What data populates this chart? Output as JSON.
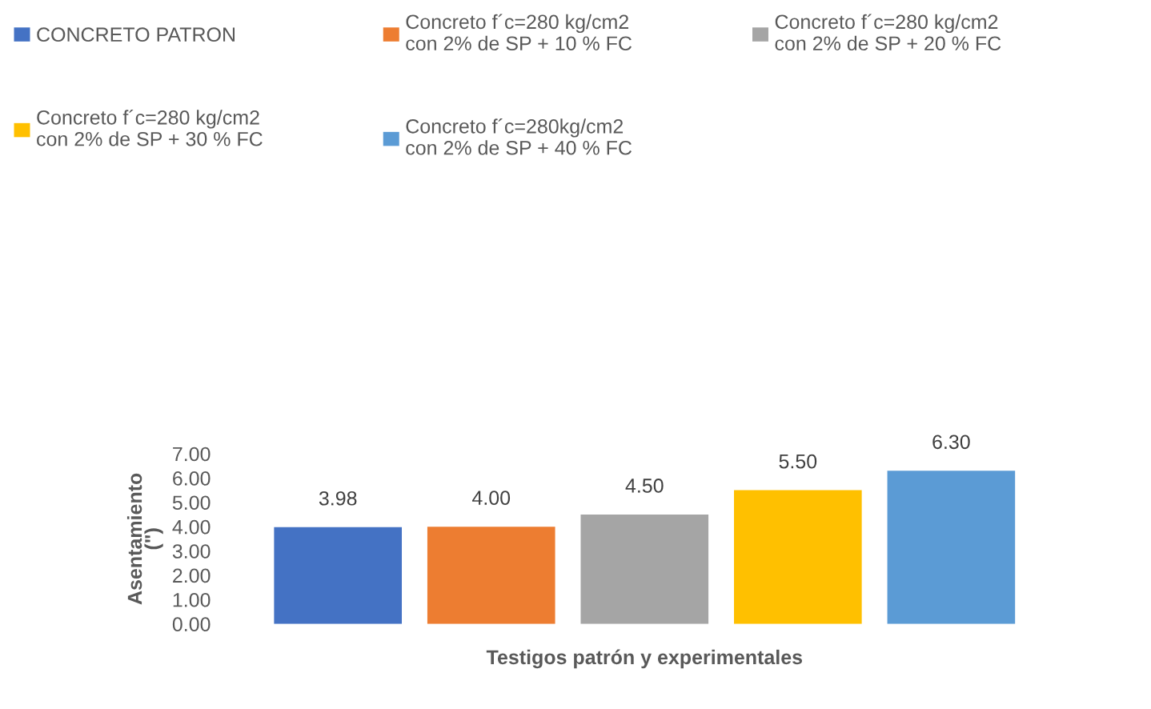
{
  "chart_data": {
    "type": "bar",
    "xlabel": "Testigos patrón y experimentales",
    "ylabel": "Asentamiento\n(\")",
    "categories": [
      null
    ],
    "series": [
      {
        "name": "CONCRETO PATRON",
        "color": "#4472c4",
        "values": [
          3.98
        ],
        "value_labels": [
          "3.98"
        ]
      },
      {
        "name": "Concreto f´c=280 kg/cm2\ncon 2% de SP + 10 % FC",
        "color": "#ed7d31",
        "values": [
          4.0
        ],
        "value_labels": [
          "4.00"
        ]
      },
      {
        "name": "Concreto f´c=280 kg/cm2\ncon 2% de SP + 20 % FC",
        "color": "#a5a5a5",
        "values": [
          4.5
        ],
        "value_labels": [
          "4.50"
        ]
      },
      {
        "name": "Concreto f´c=280 kg/cm2\ncon 2% de SP + 30 % FC",
        "color": "#ffc000",
        "values": [
          5.5
        ],
        "value_labels": [
          "5.50"
        ]
      },
      {
        "name": "Concreto f´c=280kg/cm2\ncon 2% de SP + 40 % FC",
        "color": "#5b9bd5",
        "values": [
          6.3
        ],
        "value_labels": [
          "6.30"
        ]
      }
    ],
    "ylim": [
      0,
      7
    ],
    "yticks": [
      {
        "value": 0,
        "label": "0.00"
      },
      {
        "value": 1,
        "label": "1.00"
      },
      {
        "value": 2,
        "label": "2.00"
      },
      {
        "value": 3,
        "label": "3.00"
      },
      {
        "value": 4,
        "label": "4.00"
      },
      {
        "value": 5,
        "label": "5.00"
      },
      {
        "value": 6,
        "label": "6.00"
      },
      {
        "value": 7,
        "label": "7.00"
      }
    ],
    "grid": false,
    "legend": "top"
  }
}
